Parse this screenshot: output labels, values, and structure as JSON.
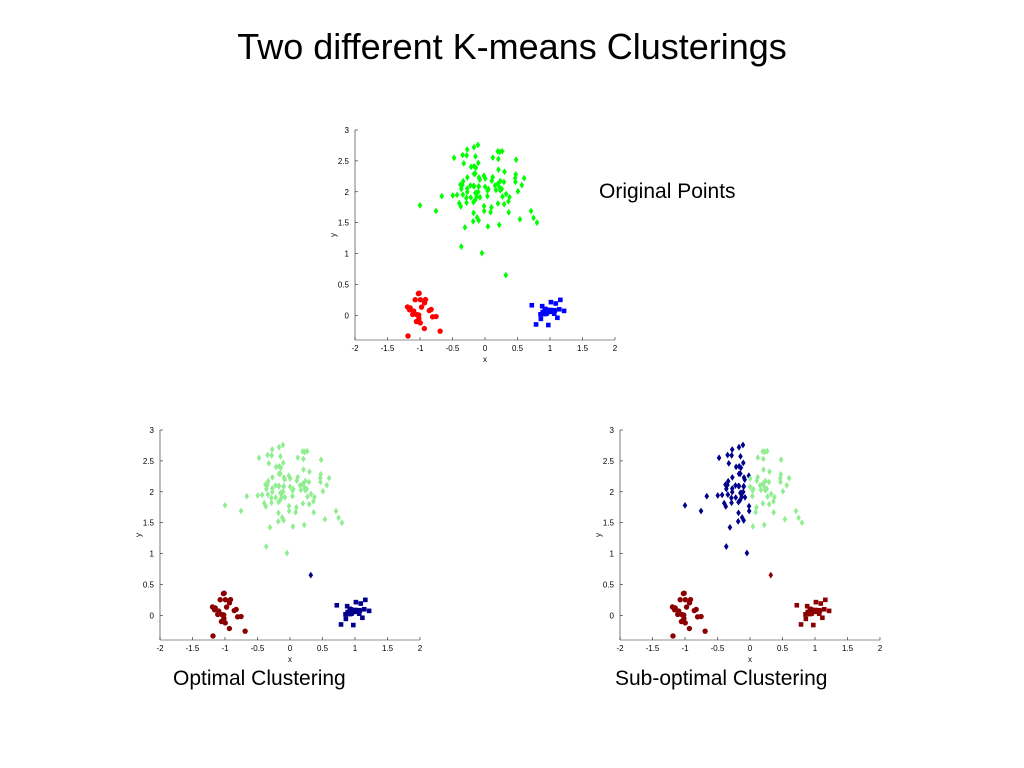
{
  "slide": {
    "title": "Two different K-means Clusterings",
    "captions": {
      "original": "Original Points",
      "optimal": "Optimal Clustering",
      "suboptimal": "Sub-optimal Clustering"
    }
  },
  "chart_data": [
    {
      "type": "scatter",
      "id": "original",
      "xlabel": "x",
      "ylabel": "y",
      "xlim": [
        -2,
        2
      ],
      "ylim": [
        -0.4,
        3
      ],
      "xticks": [
        "-2",
        "-1.5",
        "-1",
        "-0.5",
        "0",
        "0.5",
        "1",
        "1.5",
        "2"
      ],
      "yticks": [
        "0",
        "0.5",
        "1",
        "1.5",
        "2",
        "2.5",
        "3"
      ],
      "colors": {
        "top": "#00ff00",
        "left": "#ff0000",
        "right": "#0000ff"
      },
      "markers": {
        "top": "diamond",
        "left": "circle",
        "right": "square"
      }
    },
    {
      "type": "scatter",
      "id": "optimal",
      "xlabel": "x",
      "ylabel": "y",
      "xlim": [
        -2,
        2
      ],
      "ylim": [
        -0.4,
        3
      ],
      "xticks": [
        "-2",
        "-1.5",
        "-1",
        "-0.5",
        "0",
        "0.5",
        "1",
        "1.5",
        "2"
      ],
      "yticks": [
        "0",
        "0.5",
        "1",
        "1.5",
        "2",
        "2.5",
        "3"
      ],
      "colors": {
        "top": "#90ee90",
        "left": "#8b0000",
        "right": "#00008b"
      },
      "markers": {
        "top": "diamond",
        "left": "circle",
        "right": "square"
      }
    },
    {
      "type": "scatter",
      "id": "suboptimal",
      "xlabel": "x",
      "ylabel": "y",
      "xlim": [
        -2,
        2
      ],
      "ylim": [
        -0.4,
        3
      ],
      "xticks": [
        "-2",
        "-1.5",
        "-1",
        "-0.5",
        "0",
        "0.5",
        "1",
        "1.5",
        "2"
      ],
      "yticks": [
        "0",
        "0.5",
        "1",
        "1.5",
        "2",
        "2.5",
        "3"
      ],
      "colors": {
        "top_left": "#00008b",
        "top_right": "#90ee90",
        "bottom": "#8b0000"
      },
      "markers": {
        "top": "diamond",
        "left": "circle",
        "right": "square"
      }
    }
  ]
}
